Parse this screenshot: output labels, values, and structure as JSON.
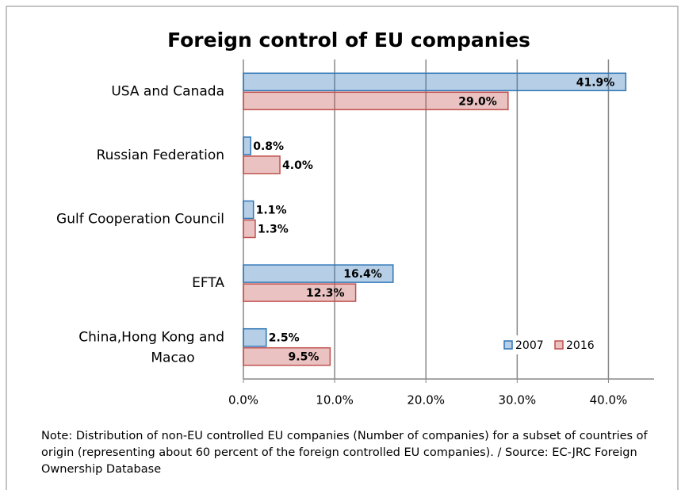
{
  "chart_data": {
    "type": "bar",
    "orientation": "horizontal",
    "title": "Foreign control of EU companies",
    "categories": [
      "USA and Canada",
      "Russian Federation",
      "Gulf Cooperation Council",
      "EFTA",
      "China,Hong Kong and Macao"
    ],
    "series": [
      {
        "name": "2007",
        "color": "#2e75b6",
        "values": [
          41.9,
          0.8,
          1.1,
          16.4,
          2.5
        ],
        "value_labels": [
          "41.9%",
          "0.8%",
          "1.1%",
          "16.4%",
          "2.5%"
        ]
      },
      {
        "name": "2016",
        "color": "#c0504d",
        "values": [
          29.0,
          4.0,
          1.3,
          12.3,
          9.5
        ],
        "value_labels": [
          "29.0%",
          "4.0%",
          "1.3%",
          "12.3%",
          "9.5%"
        ]
      }
    ],
    "xlim": [
      0,
      45
    ],
    "xticks": [
      {
        "value": 0,
        "label": "0.0%"
      },
      {
        "value": 10,
        "label": "10.0%"
      },
      {
        "value": 20,
        "label": "20.0%"
      },
      {
        "value": 30,
        "label": "30.0%"
      },
      {
        "value": 40,
        "label": "40.0%"
      }
    ],
    "grid": true,
    "legend": "lower right",
    "note": "Note: Distribution of non-EU controlled EU companies (Number of companies) for a subset of countries of origin (representing about 60 percent of the foreign controlled EU companies). / Source: EC-JRC Foreign Ownership Database"
  }
}
